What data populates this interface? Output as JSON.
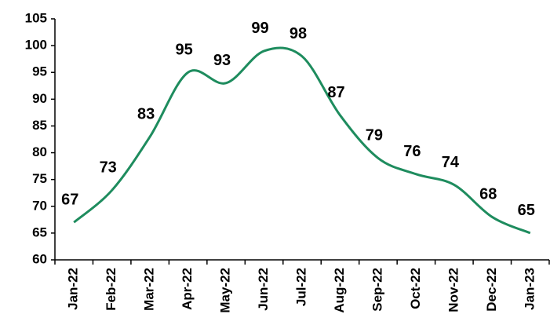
{
  "chart_data": {
    "type": "line",
    "categories": [
      "Jan-22",
      "Feb-22",
      "Mar-22",
      "Apr-22",
      "May-22",
      "Jun-22",
      "Jul-22",
      "Aug-22",
      "Sep-22",
      "Oct-22",
      "Nov-22",
      "Dec-22",
      "Jan-23"
    ],
    "values": [
      67,
      73,
      83,
      95,
      93,
      99,
      98,
      87,
      79,
      76,
      74,
      68,
      65
    ],
    "color": "#1e8c5e",
    "ylim": [
      60,
      105
    ],
    "yticks": [
      60,
      65,
      70,
      75,
      80,
      85,
      90,
      95,
      100,
      105
    ],
    "grid": false,
    "smooth": true
  }
}
